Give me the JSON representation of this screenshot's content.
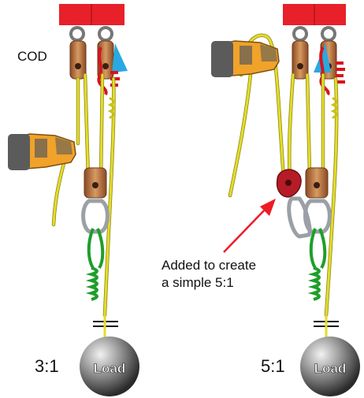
{
  "labels": {
    "cod": "COD",
    "ratio_left": "3:1",
    "ratio_right": "5:1",
    "annotation_line1": "Added to create",
    "annotation_line2": "a simple 5:1",
    "load": "Load"
  },
  "colors": {
    "anchor": "#e8202a",
    "rope_main": "#e4dc2a",
    "rope_edge": "#8a8410",
    "prusik_green": "#1f9e2b",
    "prusik_red": "#d8141c",
    "pulley_copper": "#c8804a",
    "pulley_dark": "#7a4322",
    "carabiner_grey": "#9aa0a6",
    "cam_blue": "#29a9e1",
    "extra_pulley": "#b51c26",
    "arrow": "#ee1c24",
    "glove_orange": "#f0a22a",
    "glove_grey": "#5b5b5b",
    "load_dark": "#333333",
    "load_light": "#dcdcdc"
  },
  "icons": [
    "anchor-plate",
    "pulley",
    "carabiner",
    "prusik-knot",
    "progress-capture-cam",
    "glove-hand",
    "load-ball",
    "arrow"
  ]
}
